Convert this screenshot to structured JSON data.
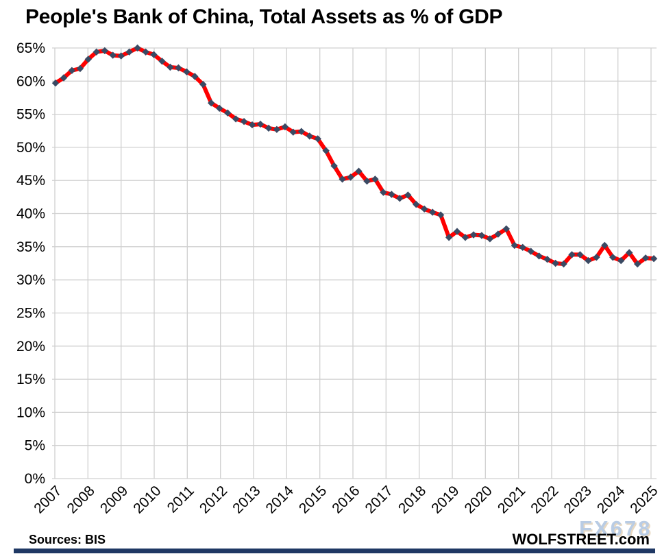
{
  "title": "People's Bank of China, Total Assets as % of GDP",
  "footer": {
    "sources": "Sources: BIS",
    "site": "WOLFSTREET.com",
    "watermark": "FX678"
  },
  "colors": {
    "line": "#fe0000",
    "marker": "#3a4a63",
    "grid": "#d0d0d0",
    "axis_text": "#000000",
    "bottom_bar": "#1f3864",
    "watermark": "#b9cce4",
    "watermark_shadow": "#e7d8c2"
  },
  "chart_data": {
    "type": "line",
    "title": "People's Bank of China, Total Assets as % of GDP",
    "xlabel": "",
    "ylabel": "Total assets as % of GDP",
    "ylim": [
      0,
      65
    ],
    "y_tick_step": 5,
    "y_tick_labels": [
      "0%",
      "5%",
      "10%",
      "15%",
      "20%",
      "25%",
      "30%",
      "35%",
      "40%",
      "45%",
      "50%",
      "55%",
      "60%",
      "65%"
    ],
    "x_tick_labels": [
      "2007",
      "2008",
      "2009",
      "2010",
      "2011",
      "2012",
      "2013",
      "2014",
      "2015",
      "2016",
      "2017",
      "2018",
      "2019",
      "2020",
      "2021",
      "2022",
      "2023",
      "2024",
      "2025"
    ],
    "frequency": "quarterly",
    "x_start": "2007-Q1",
    "x_end": "2025-Q2",
    "grid": true,
    "legend": false,
    "series": [
      {
        "name": "PBOC total assets as % of GDP",
        "values": [
          59.7,
          60.5,
          61.6,
          61.9,
          63.3,
          64.4,
          64.6,
          63.9,
          63.8,
          64.4,
          65.0,
          64.4,
          64.0,
          63.0,
          62.1,
          62.0,
          61.4,
          60.7,
          59.5,
          56.7,
          55.9,
          55.2,
          54.3,
          53.9,
          53.4,
          53.5,
          52.9,
          52.7,
          53.1,
          52.3,
          52.4,
          51.7,
          51.3,
          49.5,
          47.2,
          45.2,
          45.5,
          46.4,
          44.9,
          45.2,
          43.2,
          42.9,
          42.3,
          42.8,
          41.4,
          40.7,
          40.2,
          39.8,
          36.4,
          37.3,
          36.4,
          36.8,
          36.7,
          36.2,
          36.9,
          37.7,
          35.2,
          34.9,
          34.3,
          33.6,
          33.1,
          32.5,
          32.4,
          33.8,
          33.8,
          32.9,
          33.4,
          35.2,
          33.4,
          32.9,
          34.1,
          32.4,
          33.3,
          33.2
        ]
      }
    ]
  }
}
